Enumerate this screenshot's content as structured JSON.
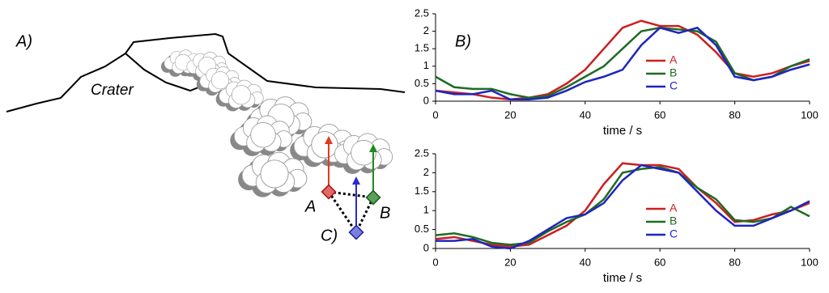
{
  "panels": {
    "a": "A)",
    "b": "B)",
    "c": "C)"
  },
  "diagram": {
    "crater": "Crater",
    "points": [
      "A",
      "B"
    ]
  },
  "chart_data": [
    {
      "type": "line",
      "xlabel": "time / s",
      "x": [
        0,
        5,
        10,
        15,
        20,
        25,
        30,
        35,
        40,
        45,
        50,
        55,
        60,
        65,
        70,
        75,
        80,
        85,
        90,
        95,
        100
      ],
      "series": [
        {
          "name": "A",
          "color": "#cc1f1f",
          "values": [
            0.3,
            0.25,
            0.2,
            0.1,
            0.05,
            0.1,
            0.2,
            0.5,
            0.9,
            1.5,
            2.1,
            2.3,
            2.15,
            2.15,
            1.9,
            1.4,
            0.8,
            0.7,
            0.8,
            1.0,
            1.15
          ]
        },
        {
          "name": "B",
          "color": "#1f6b22",
          "values": [
            0.7,
            0.4,
            0.35,
            0.35,
            0.2,
            0.1,
            0.15,
            0.4,
            0.7,
            1.0,
            1.5,
            2.0,
            2.1,
            2.05,
            2.0,
            1.7,
            0.8,
            0.6,
            0.7,
            1.0,
            1.2
          ]
        },
        {
          "name": "C",
          "color": "#1f25c0",
          "values": [
            0.3,
            0.2,
            0.2,
            0.3,
            0.05,
            0.05,
            0.1,
            0.3,
            0.55,
            0.7,
            0.9,
            1.6,
            2.1,
            1.95,
            2.1,
            1.6,
            0.7,
            0.6,
            0.7,
            0.9,
            1.05
          ]
        }
      ],
      "xlim": [
        0,
        100
      ],
      "xticks": [
        0,
        20,
        40,
        60,
        80,
        100
      ],
      "ylim": [
        0,
        2.5
      ],
      "yticks": [
        0,
        0.5,
        1,
        1.5,
        2,
        2.5
      ],
      "grid": false
    },
    {
      "type": "line",
      "xlabel": "time / s",
      "x": [
        0,
        5,
        10,
        15,
        20,
        25,
        30,
        35,
        40,
        45,
        50,
        55,
        60,
        65,
        70,
        75,
        80,
        85,
        90,
        95,
        100
      ],
      "series": [
        {
          "name": "A",
          "color": "#cc1f1f",
          "values": [
            0.25,
            0.3,
            0.2,
            0.1,
            0.05,
            0.1,
            0.35,
            0.6,
            1.0,
            1.7,
            2.25,
            2.2,
            2.2,
            2.1,
            1.6,
            1.2,
            0.7,
            0.75,
            0.9,
            1.0,
            1.2
          ]
        },
        {
          "name": "B",
          "color": "#1f6b22",
          "values": [
            0.35,
            0.4,
            0.3,
            0.15,
            0.1,
            0.15,
            0.45,
            0.7,
            0.9,
            1.3,
            2.0,
            2.1,
            2.15,
            2.0,
            1.6,
            1.3,
            0.75,
            0.7,
            0.8,
            1.1,
            0.85
          ]
        },
        {
          "name": "C",
          "color": "#1f25c0",
          "values": [
            0.2,
            0.2,
            0.25,
            0.05,
            0.0,
            0.2,
            0.5,
            0.8,
            0.9,
            1.2,
            1.8,
            2.2,
            2.1,
            2.0,
            1.5,
            1.0,
            0.6,
            0.6,
            0.8,
            1.0,
            1.25
          ]
        }
      ],
      "xlim": [
        0,
        100
      ],
      "xticks": [
        0,
        20,
        40,
        60,
        80,
        100
      ],
      "ylim": [
        0,
        2.5
      ],
      "yticks": [
        0,
        0.5,
        1,
        1.5,
        2,
        2.5
      ],
      "grid": false
    }
  ]
}
